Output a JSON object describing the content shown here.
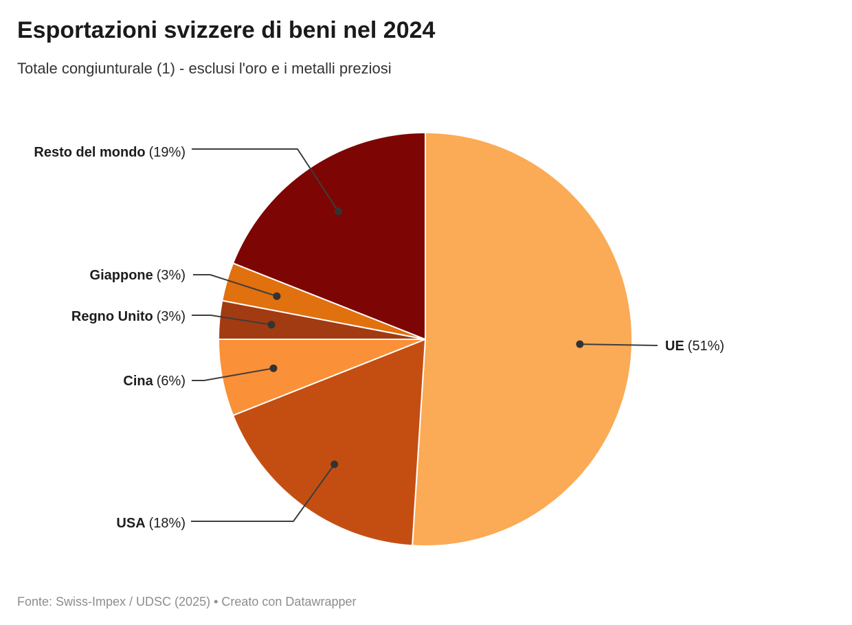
{
  "header": {
    "title": "Esportazioni svizzere di beni nel 2024",
    "subtitle": "Totale congiunturale (1) - esclusi l'oro e i metalli preziosi"
  },
  "footer": {
    "credit": "Fonte: Swiss-Impex / UDSC (2025) • Creato con Datawrapper"
  },
  "chart_data": {
    "type": "pie",
    "title": "Esportazioni svizzere di beni nel 2024",
    "unit": "%",
    "start_angle_deg": 0,
    "direction": "clockwise",
    "total_pct": 100,
    "slices": [
      {
        "name": "UE",
        "value_pct": 51,
        "pct_label": "(51%)",
        "color": "#FBAA55"
      },
      {
        "name": "USA",
        "value_pct": 18,
        "pct_label": "(18%)",
        "color": "#C44E12"
      },
      {
        "name": "Cina",
        "value_pct": 6,
        "pct_label": "(6%)",
        "color": "#FA9038"
      },
      {
        "name": "Regno Unito",
        "value_pct": 3,
        "pct_label": "(3%)",
        "color": "#A23B12"
      },
      {
        "name": "Giappone",
        "value_pct": 3,
        "pct_label": "(3%)",
        "color": "#E1700E"
      },
      {
        "name": "Resto del mondo",
        "value_pct": 19,
        "pct_label": "(19%)",
        "color": "#7D0604"
      }
    ],
    "style_colors": {
      "slice_border": "#ffffff",
      "leader_line": "#3d3d3d",
      "leader_dot": "#333333",
      "label_text": "#1d1d1d"
    }
  }
}
